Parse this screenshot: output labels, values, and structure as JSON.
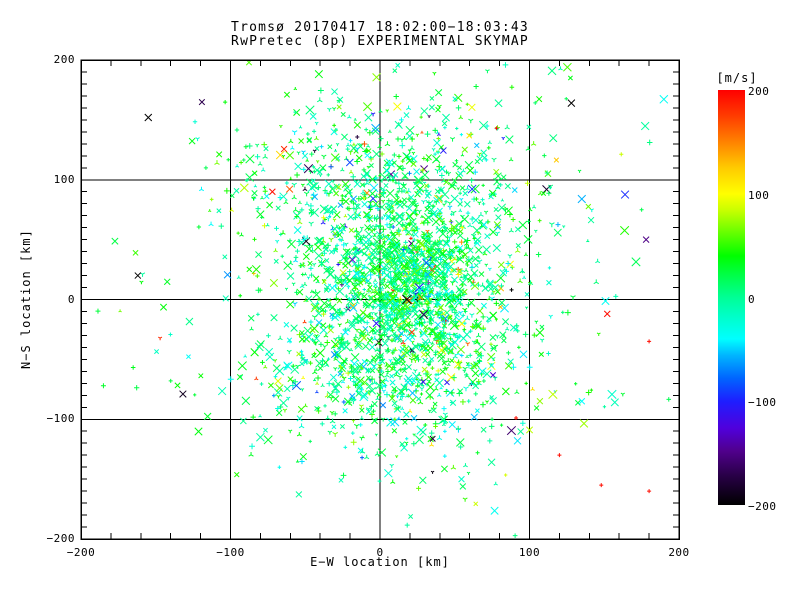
{
  "chart_data": {
    "type": "scatter",
    "title": "Tromsø 20170417 18:02:00−18:03:43",
    "subtitle": "RwPretec (8p) EXPERIMENTAL SKYMAP",
    "xlabel": "E−W location [km]",
    "ylabel": "N−S location [km]",
    "xlim": [
      -200,
      200
    ],
    "ylim": [
      -200,
      200
    ],
    "x_major_ticks": [
      -200,
      -100,
      0,
      100,
      200
    ],
    "y_major_ticks": [
      -200,
      -100,
      0,
      100,
      200
    ],
    "x_minor_step": 20,
    "y_minor_step": 10,
    "grid_values": [
      -100,
      0,
      100
    ],
    "grid_on": true,
    "background": "#ffffff",
    "axis_color": "#000000",
    "colorbar": {
      "label": "[m/s]",
      "min": -200,
      "max": 200,
      "ticks": [
        200,
        100,
        0,
        -100,
        -200
      ],
      "stops": [
        [
          -200,
          "#000000"
        ],
        [
          -172,
          "#280046"
        ],
        [
          -148,
          "#50008c"
        ],
        [
          -126,
          "#5000dc"
        ],
        [
          -100,
          "#1e1eff"
        ],
        [
          -78,
          "#0064ff"
        ],
        [
          -56,
          "#00b4ff"
        ],
        [
          -40,
          "#00ffff"
        ],
        [
          -18,
          "#00ffc8"
        ],
        [
          0,
          "#00ff96"
        ],
        [
          22,
          "#00ff46"
        ],
        [
          40,
          "#00ff00"
        ],
        [
          62,
          "#64ff00"
        ],
        [
          84,
          "#c8ff00"
        ],
        [
          100,
          "#ffff00"
        ],
        [
          126,
          "#ffc800"
        ],
        [
          150,
          "#ff8200"
        ],
        [
          175,
          "#ff3c00"
        ],
        [
          200,
          "#ff0000"
        ]
      ]
    },
    "point_cloud": {
      "seed": 20170417,
      "comment": "dense echo cloud; positions in km, velocities in m/s mapped through colorbar",
      "clusters": [
        {
          "n": 950,
          "cx": 12,
          "cy": 10,
          "sx": 38,
          "sy": 45
        },
        {
          "n": 600,
          "cx": 2,
          "cy": 95,
          "sx": 52,
          "sy": 40
        },
        {
          "n": 520,
          "cx": 8,
          "cy": -60,
          "sx": 50,
          "sy": 36
        },
        {
          "n": 380,
          "cx": 24,
          "cy": 18,
          "sx": 17,
          "sy": 24
        },
        {
          "n": 260,
          "cx": 10,
          "cy": 5,
          "sx": 88,
          "sy": 95
        }
      ],
      "velocity": {
        "mean": 12,
        "sigma": 30,
        "outlier_frac": 0.055,
        "outlier_range": [
          -200,
          200
        ]
      },
      "marker_mix": {
        "x": 0.42,
        "plus": 0.3,
        "claw": 0.28
      }
    },
    "notable_points": [
      {
        "x": 128,
        "y": 164,
        "v": -200,
        "t": "x",
        "s": 3.5
      },
      {
        "x": -155,
        "y": 152,
        "v": -200,
        "t": "x",
        "s": 3.5
      },
      {
        "x": -162,
        "y": 20,
        "v": -200,
        "t": "x",
        "s": 3
      },
      {
        "x": 178,
        "y": 50,
        "v": -150,
        "t": "x",
        "s": 3
      },
      {
        "x": 88,
        "y": 8,
        "v": -200,
        "t": "p",
        "s": 2
      },
      {
        "x": 18,
        "y": 0,
        "v": -200,
        "t": "x",
        "s": 4.5
      },
      {
        "x": 152,
        "y": -12,
        "v": 195,
        "t": "x",
        "s": 3
      },
      {
        "x": -72,
        "y": 90,
        "v": 195,
        "t": "x",
        "s": 3
      },
      {
        "x": 78,
        "y": 143,
        "v": 195,
        "t": "p",
        "s": 2
      },
      {
        "x": 180,
        "y": -35,
        "v": 195,
        "t": "p",
        "s": 2
      },
      {
        "x": 120,
        "y": -130,
        "v": 195,
        "t": "p",
        "s": 2
      },
      {
        "x": 148,
        "y": -155,
        "v": 195,
        "t": "p",
        "s": 2
      },
      {
        "x": 180,
        "y": -160,
        "v": 195,
        "t": "p",
        "s": 2
      },
      {
        "x": 91,
        "y": -99,
        "v": 195,
        "t": "p",
        "s": 2
      },
      {
        "x": -185,
        "y": -72,
        "v": 30,
        "t": "p",
        "s": 2.5
      },
      {
        "x": -140,
        "y": -68,
        "v": 25,
        "t": "p",
        "s": 2
      },
      {
        "x": 175,
        "y": 75,
        "v": 20,
        "t": "p",
        "s": 2
      },
      {
        "x": 135,
        "y": -85,
        "v": -40,
        "t": "x",
        "s": 3
      },
      {
        "x": 92,
        "y": -118,
        "v": -45,
        "t": "x",
        "s": 3.5
      },
      {
        "x": -12,
        "y": -132,
        "v": -80,
        "t": "p",
        "s": 2
      },
      {
        "x": 55,
        "y": 60,
        "v": 100,
        "t": "p",
        "s": 2
      }
    ]
  }
}
